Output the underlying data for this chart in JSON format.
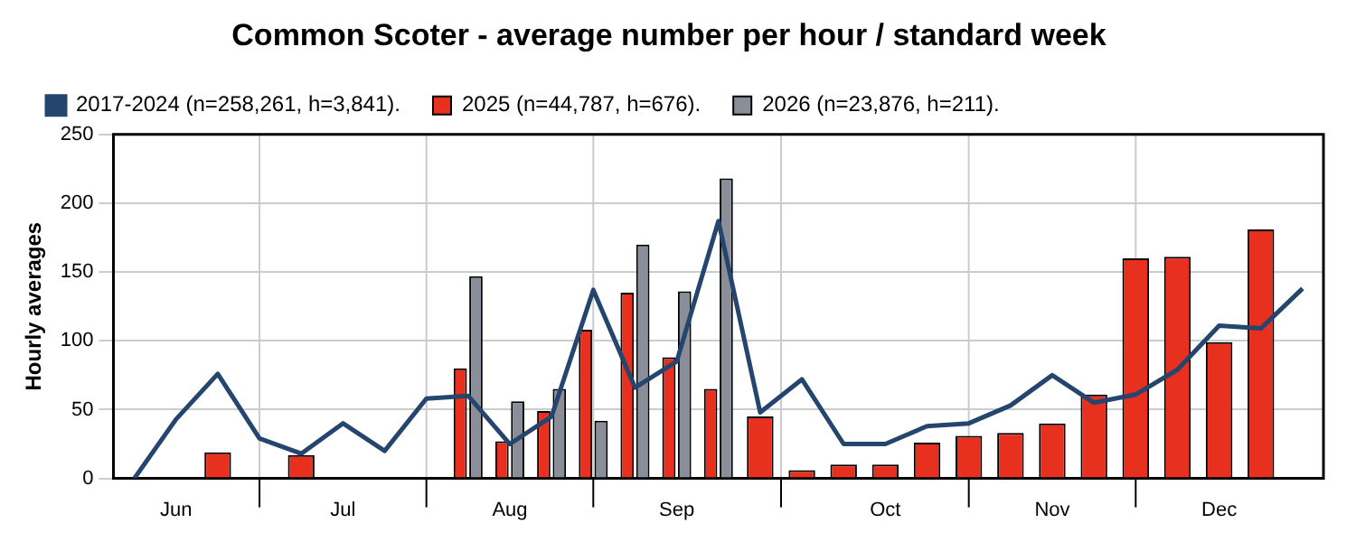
{
  "chart_data": {
    "type": "bar",
    "title": "Common Scoter - average number per hour / standard week",
    "ylabel": "Hourly averages",
    "categories": [
      null,
      "Jun",
      null,
      null,
      null,
      "Jul",
      null,
      null,
      null,
      "Aug",
      null,
      null,
      null,
      "Sep",
      null,
      null,
      null,
      null,
      "Oct",
      null,
      null,
      null,
      "Nov",
      null,
      null,
      null,
      "Dec",
      null,
      null
    ],
    "series": [
      {
        "name": "2017-2024 (n=258,261, h=3,841).",
        "type": "line",
        "color": "#24466e",
        "values": [
          0,
          43,
          76,
          29,
          18,
          40,
          20,
          58,
          60,
          25,
          45,
          137,
          66,
          85,
          187,
          48,
          72,
          25,
          25,
          38,
          40,
          53,
          75,
          55,
          61,
          79,
          111,
          109,
          138
        ]
      },
      {
        "name": "2025 (n=44,787, h=676).",
        "color": "#e8301f",
        "values": [
          null,
          null,
          19,
          null,
          17,
          null,
          null,
          null,
          80,
          27,
          49,
          108,
          135,
          88,
          65,
          45,
          6,
          10,
          10,
          26,
          31,
          33,
          40,
          61,
          160,
          161,
          99,
          181,
          null
        ]
      },
      {
        "name": "2026 (n=23,876, h=211).",
        "color": "#8a8e99",
        "values": [
          null,
          null,
          null,
          null,
          null,
          null,
          null,
          null,
          147,
          56,
          65,
          42,
          170,
          136,
          218,
          null,
          null,
          null,
          null,
          null,
          null,
          null,
          null,
          null,
          null,
          null,
          null,
          null,
          null
        ]
      }
    ],
    "ylim": [
      0,
      250
    ],
    "yticks": [
      0,
      50,
      100,
      150,
      200,
      250
    ],
    "grid": true,
    "legend": "top",
    "marker": "none",
    "line_style": "solid"
  }
}
